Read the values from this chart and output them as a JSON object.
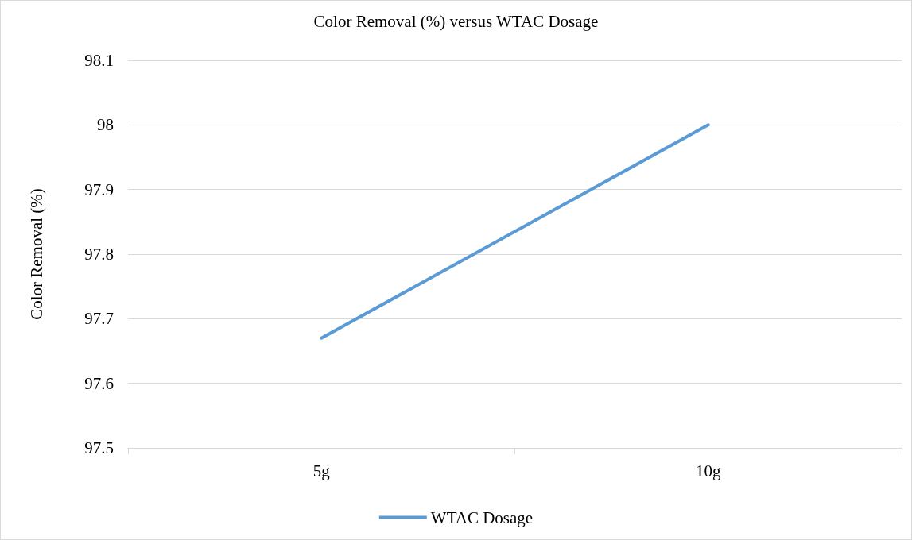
{
  "chart_data": {
    "type": "line",
    "title": "Color Removal (%) versus WTAC Dosage",
    "ylabel": "Color Removal (%)",
    "categories": [
      "5g",
      "10g"
    ],
    "series": [
      {
        "name": "WTAC Dosage",
        "color": "#5b9bd5",
        "values": [
          97.67,
          98.0
        ]
      }
    ],
    "ylim": [
      97.5,
      98.1
    ],
    "yticks": [
      97.5,
      97.6,
      97.7,
      97.8,
      97.9,
      98,
      98.1
    ],
    "grid": "y",
    "legend": "bottom",
    "marker": "none",
    "line_style": "solid"
  }
}
